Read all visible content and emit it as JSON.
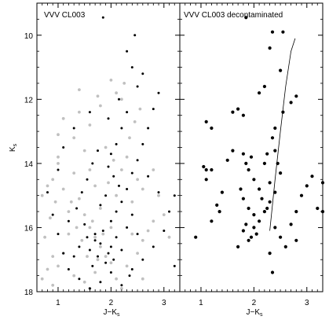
{
  "chart_data": [
    {
      "type": "scatter",
      "title": "VVV CL003",
      "xlabel": "J−K",
      "xlabel_sub": "s",
      "ylabel": "K",
      "ylabel_sub": "s",
      "xlim": [
        0.6,
        3.3
      ],
      "ylim": [
        18,
        9
      ],
      "y_inverted": true,
      "xticks": [
        1,
        2,
        3
      ],
      "yticks": [
        10,
        12,
        14,
        16,
        18
      ],
      "grid": false,
      "series": [
        {
          "role": "field",
          "color": "#c0c0c0",
          "points": [
            [
              1.0,
              13.1
            ],
            [
              1.4,
              11.7
            ],
            [
              2.0,
              11.4
            ],
            [
              1.1,
              12.6
            ],
            [
              1.4,
              12.4
            ],
            [
              1.6,
              12.8
            ],
            [
              1.8,
              12.2
            ],
            [
              1.75,
              11.9
            ],
            [
              2.1,
              11.8
            ],
            [
              2.2,
              12.0
            ],
            [
              0.7,
              17.6
            ],
            [
              0.8,
              17.3
            ],
            [
              0.9,
              16.9
            ],
            [
              0.75,
              16.3
            ],
            [
              0.85,
              15.7
            ],
            [
              0.9,
              14.5
            ],
            [
              1.0,
              14.0
            ],
            [
              0.8,
              14.7
            ],
            [
              0.95,
              15.2
            ],
            [
              1.1,
              14.8
            ],
            [
              1.2,
              15.5
            ],
            [
              1.3,
              14.3
            ],
            [
              1.0,
              13.8
            ],
            [
              1.5,
              13.6
            ],
            [
              1.6,
              14.2
            ],
            [
              1.7,
              14.7
            ],
            [
              1.4,
              15.1
            ],
            [
              1.5,
              15.6
            ],
            [
              1.6,
              16.0
            ],
            [
              1.7,
              16.3
            ],
            [
              1.8,
              16.6
            ],
            [
              1.9,
              16.9
            ],
            [
              2.0,
              17.1
            ],
            [
              1.3,
              17.5
            ],
            [
              1.5,
              17.7
            ],
            [
              1.7,
              17.4
            ],
            [
              2.1,
              17.6
            ],
            [
              2.3,
              17.2
            ],
            [
              2.5,
              16.8
            ],
            [
              2.6,
              16.4
            ],
            [
              2.7,
              16.1
            ],
            [
              2.8,
              15.8
            ],
            [
              2.4,
              15.2
            ],
            [
              2.6,
              14.8
            ],
            [
              2.5,
              14.5
            ],
            [
              2.3,
              13.8
            ],
            [
              2.2,
              14.2
            ],
            [
              2.8,
              14.2
            ],
            [
              2.9,
              15.0
            ],
            [
              3.0,
              15.6
            ],
            [
              3.1,
              16.3
            ],
            [
              1.2,
              16.2
            ],
            [
              1.1,
              16.8
            ],
            [
              1.0,
              17.2
            ],
            [
              0.9,
              17.8
            ],
            [
              0.7,
              15.0
            ],
            [
              1.3,
              13.2
            ],
            [
              1.9,
              13.5
            ],
            [
              2.1,
              15.0
            ],
            [
              2.0,
              16.0
            ],
            [
              1.8,
              15.4
            ],
            [
              1.6,
              17.9
            ],
            [
              2.2,
              17.9
            ],
            [
              2.6,
              17.6
            ],
            [
              2.4,
              16.2
            ],
            [
              1.45,
              16.4
            ],
            [
              1.55,
              16.9
            ],
            [
              1.75,
              17.0
            ],
            [
              1.85,
              16.2
            ],
            [
              1.65,
              15.8
            ],
            [
              1.35,
              16.0
            ],
            [
              1.25,
              15.2
            ],
            [
              1.95,
              14.6
            ],
            [
              2.05,
              13.9
            ],
            [
              2.35,
              13.2
            ],
            [
              2.45,
              12.7
            ],
            [
              2.55,
              12.3
            ],
            [
              2.25,
              11.5
            ]
          ]
        },
        {
          "role": "cluster",
          "color": "#000000",
          "points": [
            [
              1.85,
              9.45
            ],
            [
              2.3,
              10.5
            ],
            [
              2.4,
              11.0
            ],
            [
              2.5,
              11.6
            ],
            [
              2.3,
              12.4
            ],
            [
              2.2,
              12.9
            ],
            [
              2.1,
              13.4
            ],
            [
              2.0,
              13.7
            ],
            [
              1.95,
              14.1
            ],
            [
              2.05,
              14.4
            ],
            [
              2.15,
              14.7
            ],
            [
              1.9,
              15.0
            ],
            [
              1.8,
              15.3
            ],
            [
              2.1,
              15.5
            ],
            [
              2.0,
              15.8
            ],
            [
              1.85,
              16.1
            ],
            [
              1.7,
              16.4
            ],
            [
              1.6,
              16.7
            ],
            [
              1.75,
              16.9
            ],
            [
              1.9,
              17.1
            ],
            [
              2.0,
              16.6
            ],
            [
              2.1,
              16.3
            ],
            [
              2.3,
              16.0
            ],
            [
              2.4,
              15.6
            ],
            [
              2.2,
              15.2
            ],
            [
              2.3,
              14.8
            ],
            [
              2.4,
              14.3
            ],
            [
              2.5,
              13.9
            ],
            [
              2.6,
              13.4
            ],
            [
              2.7,
              12.9
            ],
            [
              2.8,
              12.3
            ],
            [
              2.9,
              11.8
            ],
            [
              1.3,
              12.9
            ],
            [
              1.1,
              13.5
            ],
            [
              1.0,
              14.2
            ],
            [
              0.8,
              14.9
            ],
            [
              0.9,
              15.6
            ],
            [
              1.0,
              16.2
            ],
            [
              1.1,
              16.8
            ],
            [
              1.2,
              17.3
            ],
            [
              1.4,
              17.6
            ],
            [
              1.6,
              17.9
            ],
            [
              1.8,
              17.7
            ],
            [
              2.0,
              17.4
            ],
            [
              2.2,
              17.8
            ],
            [
              2.4,
              17.3
            ],
            [
              2.6,
              17.0
            ],
            [
              2.8,
              16.6
            ],
            [
              3.0,
              16.1
            ],
            [
              3.1,
              15.5
            ],
            [
              2.9,
              14.9
            ],
            [
              2.7,
              14.4
            ],
            [
              1.2,
              15.8
            ],
            [
              1.35,
              15.4
            ],
            [
              1.45,
              14.9
            ],
            [
              1.55,
              14.5
            ],
            [
              1.65,
              14.0
            ],
            [
              1.75,
              13.6
            ],
            [
              1.7,
              16.2
            ],
            [
              1.8,
              16.5
            ],
            [
              1.65,
              17.2
            ],
            [
              1.55,
              16.3
            ],
            [
              1.5,
              15.9
            ],
            [
              1.95,
              16.8
            ],
            [
              2.05,
              17.0
            ],
            [
              2.2,
              16.7
            ],
            [
              1.4,
              16.6
            ],
            [
              1.3,
              16.9
            ],
            [
              2.5,
              16.2
            ],
            [
              2.35,
              17.5
            ],
            [
              3.2,
              15.0
            ],
            [
              3.2,
              17.2
            ],
            [
              2.6,
              11.2
            ],
            [
              2.45,
              10.0
            ],
            [
              2.15,
              12.0
            ],
            [
              1.95,
              12.6
            ],
            [
              1.6,
              12.4
            ]
          ]
        }
      ]
    },
    {
      "type": "scatter",
      "title": "VVV CL003 decontaminated",
      "xlabel": "J−K",
      "xlabel_sub": "s",
      "xlim": [
        0.6,
        3.3
      ],
      "ylim": [
        18,
        9
      ],
      "y_inverted": true,
      "xticks": [
        1,
        2,
        3
      ],
      "yticks": [
        10,
        12,
        14,
        16,
        18
      ],
      "grid": false,
      "series": [
        {
          "role": "decontaminated",
          "color": "#000000",
          "points": [
            [
              1.85,
              9.45
            ],
            [
              2.35,
              9.9
            ],
            [
              2.55,
              9.9
            ],
            [
              2.3,
              10.4
            ],
            [
              2.5,
              11.1
            ],
            [
              2.2,
              11.6
            ],
            [
              2.1,
              11.8
            ],
            [
              1.7,
              12.3
            ],
            [
              1.6,
              12.4
            ],
            [
              1.8,
              12.5
            ],
            [
              1.1,
              12.7
            ],
            [
              1.2,
              12.9
            ],
            [
              1.05,
              14.1
            ],
            [
              1.1,
              14.2
            ],
            [
              1.2,
              14.2
            ],
            [
              1.1,
              14.5
            ],
            [
              1.4,
              14.9
            ],
            [
              1.3,
              15.3
            ],
            [
              1.35,
              15.5
            ],
            [
              1.2,
              15.8
            ],
            [
              0.9,
              16.3
            ],
            [
              1.5,
              13.9
            ],
            [
              1.6,
              13.6
            ],
            [
              1.8,
              13.7
            ],
            [
              1.85,
              14.0
            ],
            [
              1.9,
              14.2
            ],
            [
              2.0,
              14.5
            ],
            [
              1.75,
              14.8
            ],
            [
              1.8,
              15.1
            ],
            [
              1.9,
              15.4
            ],
            [
              2.0,
              15.6
            ],
            [
              1.85,
              15.9
            ],
            [
              1.8,
              16.1
            ],
            [
              1.95,
              16.3
            ],
            [
              2.05,
              16.2
            ],
            [
              2.1,
              15.8
            ],
            [
              2.2,
              15.5
            ],
            [
              2.3,
              15.2
            ],
            [
              2.4,
              14.9
            ],
            [
              2.3,
              14.6
            ],
            [
              2.5,
              14.3
            ],
            [
              2.45,
              14.0
            ],
            [
              2.4,
              13.6
            ],
            [
              2.35,
              13.2
            ],
            [
              2.4,
              12.9
            ],
            [
              2.55,
              12.4
            ],
            [
              2.8,
              11.9
            ],
            [
              2.7,
              12.1
            ],
            [
              2.4,
              16.0
            ],
            [
              2.5,
              16.3
            ],
            [
              2.6,
              16.6
            ],
            [
              2.7,
              15.9
            ],
            [
              2.8,
              15.5
            ],
            [
              2.9,
              15.0
            ],
            [
              3.0,
              14.7
            ],
            [
              3.1,
              14.4
            ],
            [
              2.8,
              16.4
            ],
            [
              2.3,
              16.8
            ],
            [
              2.35,
              17.4
            ],
            [
              1.7,
              16.6
            ],
            [
              1.9,
              16.4
            ],
            [
              2.0,
              16.0
            ],
            [
              2.1,
              14.8
            ],
            [
              2.2,
              14.0
            ],
            [
              2.25,
              13.7
            ],
            [
              3.2,
              15.4
            ],
            [
              3.3,
              14.6
            ],
            [
              3.3,
              15.5
            ],
            [
              1.95,
              13.8
            ],
            [
              2.15,
              15.1
            ],
            [
              2.25,
              15.4
            ]
          ]
        }
      ],
      "isochrone": [
        [
          2.3,
          16.1
        ],
        [
          2.4,
          14.5
        ],
        [
          2.5,
          13.0
        ],
        [
          2.6,
          11.6
        ],
        [
          2.7,
          10.5
        ],
        [
          2.78,
          10.1
        ]
      ]
    }
  ]
}
